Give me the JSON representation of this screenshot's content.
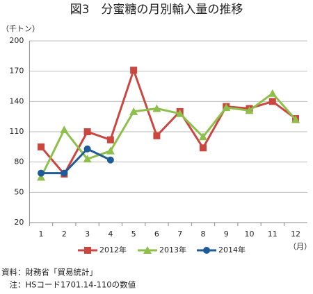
{
  "chart_data": {
    "type": "line",
    "title": "図3　分蜜糖の月別輸入量の推移",
    "y_axis_label": "（千トン）",
    "x_axis_label": "（月）",
    "categories": [
      "1",
      "2",
      "3",
      "4",
      "5",
      "6",
      "7",
      "8",
      "9",
      "10",
      "11",
      "12"
    ],
    "series": [
      {
        "name": "2012年",
        "color": "#cc4640",
        "marker": "square",
        "values": [
          95,
          68,
          110,
          102,
          171,
          106,
          130,
          94,
          135,
          133,
          140,
          123
        ]
      },
      {
        "name": "2013年",
        "color": "#8cc04a",
        "marker": "triangle",
        "values": [
          65,
          112,
          83,
          91,
          130,
          133,
          128,
          105,
          134,
          131,
          148,
          122
        ]
      },
      {
        "name": "2014年",
        "color": "#1f5b98",
        "marker": "circle",
        "values": [
          69,
          69,
          93,
          82,
          null,
          null,
          null,
          null,
          null,
          null,
          null,
          null
        ]
      }
    ],
    "ylim": [
      20,
      200
    ],
    "yticks": [
      20,
      50,
      80,
      110,
      140,
      170,
      200
    ],
    "grid": true,
    "legend": "bottom",
    "notes": [
      "資料：財務省「貿易統計」",
      "　注：HSコード1701.14-110の数値"
    ]
  }
}
